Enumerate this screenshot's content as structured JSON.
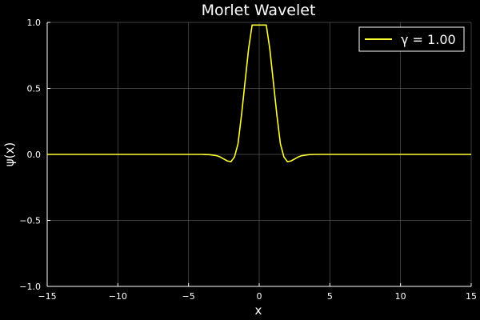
{
  "chart_data": {
    "type": "line",
    "title": "Morlet Wavelet",
    "xlabel": "x",
    "ylabel": "ψ(x)",
    "xlim": [
      -15,
      15
    ],
    "ylim": [
      -1.0,
      1.0
    ],
    "x_ticks": [
      -15,
      -10,
      -5,
      0,
      5,
      10,
      15
    ],
    "x_tick_labels": [
      "−15",
      "−10",
      "−5",
      "0",
      "5",
      "10",
      "15"
    ],
    "y_ticks": [
      -1.0,
      -0.5,
      0.0,
      0.5,
      1.0
    ],
    "y_tick_labels": [
      "−1.0",
      "−0.5",
      "0.0",
      "0.5",
      "1.0"
    ],
    "grid": true,
    "legend_position": "top-right",
    "background": "#000000",
    "series": [
      {
        "name": "γ = 1.00",
        "color": "#ffff33",
        "x": [
          -15,
          -10,
          -5,
          -4,
          -3.5,
          -3,
          -2.75,
          -2.5,
          -2.25,
          -2,
          -1.75,
          -1.5,
          -1.25,
          -1,
          -0.75,
          -0.5,
          -0.25,
          0,
          0.25,
          0.5,
          0.75,
          1,
          1.25,
          1.5,
          1.75,
          2,
          2.25,
          2.5,
          2.75,
          3,
          3.5,
          4,
          5,
          10,
          15
        ],
        "y": [
          0,
          0,
          0,
          0,
          -0.002,
          -0.01,
          -0.02,
          -0.035,
          -0.05,
          -0.055,
          -0.02,
          0.08,
          0.3,
          0.55,
          0.8,
          0.98,
          0.98,
          0.98,
          0.98,
          0.98,
          0.8,
          0.55,
          0.3,
          0.08,
          -0.02,
          -0.055,
          -0.05,
          -0.035,
          -0.02,
          -0.01,
          -0.002,
          0,
          0,
          0,
          0
        ]
      }
    ]
  }
}
